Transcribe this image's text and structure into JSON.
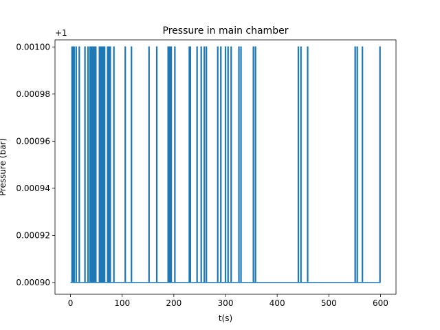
{
  "chart_data": {
    "type": "line",
    "title": "Pressure in main chamber",
    "xlabel": "t(s)",
    "ylabel": "Pressure (bar)",
    "y_offset_label": "+1",
    "xlim": [
      -30,
      630
    ],
    "ylim": [
      0.000895,
      0.001003
    ],
    "xticks": [
      0,
      100,
      200,
      300,
      400,
      500,
      600
    ],
    "xtick_labels": [
      "0",
      "100",
      "200",
      "300",
      "400",
      "500",
      "600"
    ],
    "yticks": [
      0.0009,
      0.00092,
      0.00094,
      0.00096,
      0.00098,
      0.001
    ],
    "ytick_labels": [
      "0.00090",
      "0.00092",
      "0.00094",
      "0.00096",
      "0.00098",
      "0.00100"
    ],
    "grid": false,
    "line_color": "#1f77b4",
    "series": [
      {
        "baseline": 0.0009,
        "peak": 0.001,
        "spike_times": [
          3,
          5,
          7,
          11,
          17,
          28,
          34,
          38,
          40,
          43,
          46,
          49,
          56,
          58,
          61,
          63,
          66,
          72,
          74,
          77,
          84,
          106,
          118,
          152,
          167,
          189,
          192,
          195,
          202,
          230,
          232,
          245,
          253,
          259,
          263,
          285,
          291,
          300,
          305,
          311,
          326,
          330,
          354,
          358,
          441,
          446,
          459,
          551,
          555,
          565,
          599
        ],
        "x_start": 0,
        "x_end": 600
      }
    ]
  }
}
